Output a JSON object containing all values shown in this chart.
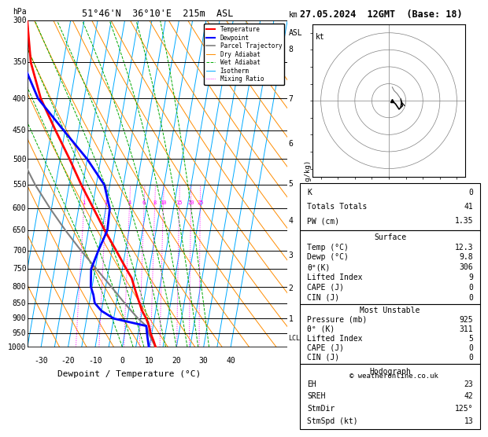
{
  "title_left": "51°46'N  36°10'E  215m  ASL",
  "title_right": "27.05.2024  12GMT  (Base: 18)",
  "xlabel": "Dewpoint / Temperature (°C)",
  "pressure_levels": [
    300,
    350,
    400,
    450,
    500,
    550,
    600,
    650,
    700,
    750,
    800,
    850,
    900,
    950,
    1000
  ],
  "xlim": [
    -35,
    40
  ],
  "temp_color": "#ff0000",
  "dewp_color": "#0000ff",
  "parcel_color": "#808080",
  "dry_adiabat_color": "#ff8c00",
  "wet_adiabat_color": "#00aa00",
  "isotherm_color": "#00aaff",
  "mixing_ratio_color": "#ff00ff",
  "lcl_label": "LCL",
  "info_K": "0",
  "info_TotTot": "41",
  "info_PW": "1.35",
  "surf_temp": "12.3",
  "surf_dewp": "9.8",
  "surf_theta_e": "306",
  "surf_li": "9",
  "surf_cape": "0",
  "surf_cin": "0",
  "mu_pres": "925",
  "mu_theta_e": "311",
  "mu_li": "5",
  "mu_cape": "0",
  "mu_cin": "0",
  "hodo_EH": "23",
  "hodo_SREH": "42",
  "hodo_StmDir": "125°",
  "hodo_StmSpd": "13",
  "temp_profile_p": [
    1000,
    975,
    950,
    925,
    900,
    875,
    850,
    825,
    800,
    775,
    750,
    700,
    650,
    600,
    550,
    500,
    450,
    400,
    350,
    300
  ],
  "temp_profile_T": [
    12.3,
    11.0,
    9.5,
    8.5,
    7.0,
    5.0,
    3.5,
    2.0,
    0.5,
    -1.0,
    -3.5,
    -8.5,
    -14.0,
    -19.5,
    -25.5,
    -31.5,
    -38.5,
    -46.0,
    -52.0,
    -56.0
  ],
  "dewp_profile_p": [
    1000,
    975,
    950,
    925,
    900,
    875,
    850,
    825,
    800,
    775,
    750,
    700,
    650,
    600,
    550,
    500,
    450,
    400,
    350,
    300
  ],
  "dewp_profile_T": [
    9.8,
    9.0,
    8.2,
    7.5,
    -5.0,
    -10.0,
    -13.0,
    -14.0,
    -15.5,
    -16.0,
    -16.5,
    -15.0,
    -13.0,
    -13.5,
    -17.0,
    -25.0,
    -35.5,
    -47.0,
    -55.0,
    -60.0
  ],
  "parcel_profile_p": [
    1000,
    975,
    950,
    925,
    900,
    875,
    850,
    800,
    750,
    700,
    650,
    600,
    550,
    500,
    450,
    400,
    350,
    300
  ],
  "parcel_profile_T": [
    12.3,
    10.5,
    8.8,
    7.5,
    4.0,
    1.0,
    -2.0,
    -8.0,
    -14.5,
    -21.5,
    -28.5,
    -35.5,
    -42.5,
    -49.0,
    -55.0,
    -59.0,
    -62.0,
    -64.0
  ],
  "mixing_ratio_values": [
    1,
    2,
    4,
    6,
    8,
    10,
    15,
    20,
    25
  ],
  "km_ticks": [
    1,
    2,
    3,
    4,
    5,
    6,
    7,
    8
  ],
  "km_pressures": [
    902,
    805,
    714,
    628,
    548,
    472,
    401,
    334
  ],
  "skew_factor": 40.0,
  "copyright": "© weatheronline.co.uk"
}
